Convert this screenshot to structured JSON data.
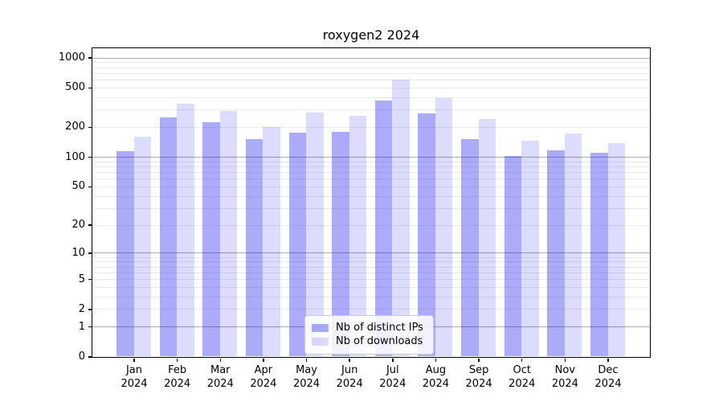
{
  "chart_data": {
    "type": "bar",
    "title": "roxygen2 2024",
    "year_label": "2024",
    "categories": [
      "Jan",
      "Feb",
      "Mar",
      "Apr",
      "May",
      "Jun",
      "Jul",
      "Aug",
      "Sep",
      "Oct",
      "Nov",
      "Dec"
    ],
    "series": [
      {
        "name": "Nb of distinct IPs",
        "color": "#0a0af0",
        "alpha": 0.34,
        "values": [
          113,
          252,
          222,
          150,
          175,
          180,
          373,
          274,
          152,
          102,
          117,
          109
        ]
      },
      {
        "name": "Nb of downloads",
        "color": "#0a0af0",
        "alpha": 0.14,
        "values": [
          159,
          341,
          288,
          199,
          281,
          260,
          600,
          389,
          239,
          145,
          171,
          138
        ]
      }
    ],
    "y_scale": "log10(value+1)",
    "y_axis_ticks": [
      1000,
      500,
      200,
      100,
      50,
      20,
      10,
      5,
      2,
      1,
      0
    ],
    "y_max": 1250,
    "grid": {
      "major_lines": [
        1,
        10,
        100,
        1000
      ],
      "minor_multiples": [
        2,
        3,
        4,
        5,
        6,
        7,
        8,
        9
      ],
      "minor_decades": [
        1,
        10,
        100
      ],
      "major_color": "#adadad",
      "minor_color": "#eaeaea"
    },
    "legend_position": "lower center"
  }
}
